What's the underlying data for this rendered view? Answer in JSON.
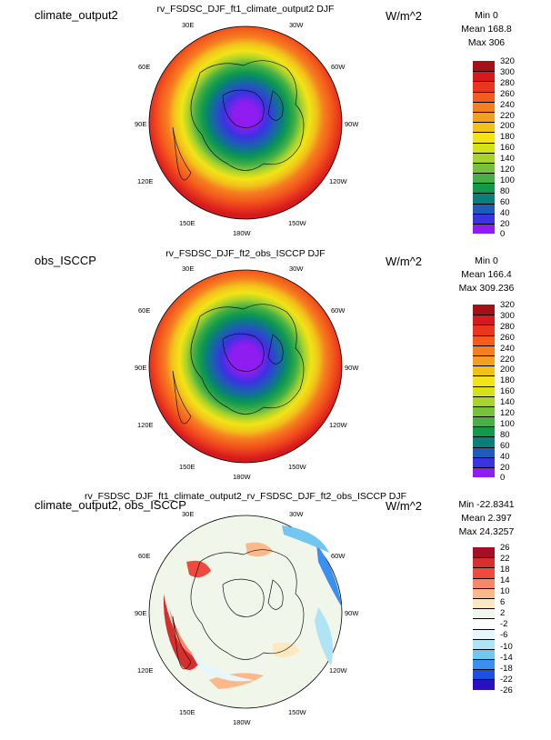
{
  "panels": [
    {
      "left_title": "climate_output2",
      "center_title": "rv_FSDSC_DJF_ft1_climate_output2  DJF",
      "units": "W/m^2",
      "stats": {
        "min": "Min 0",
        "mean": "Mean 168.8",
        "max": "Max 306"
      },
      "colorbar": {
        "labels": [
          "320",
          "300",
          "280",
          "260",
          "240",
          "220",
          "200",
          "180",
          "160",
          "140",
          "120",
          "100",
          "80",
          "60",
          "40",
          "20",
          "0"
        ],
        "colors": [
          "#a50f15",
          "#d7191c",
          "#e8371e",
          "#f45b1c",
          "#f57f20",
          "#f29f22",
          "#f2c21b",
          "#f2e416",
          "#d4e21a",
          "#a8d22c",
          "#78c13a",
          "#46b046",
          "#119a4e",
          "#0a7f7a",
          "#1f5bb8",
          "#3a33e0",
          "#8f1cf0"
        ]
      },
      "lon_labels": {
        "l30e": "30E",
        "l30w": "30W",
        "l60e": "60E",
        "l60w": "60W",
        "l90e": "90E",
        "l90w": "90W",
        "l120e": "120E",
        "l120w": "120W",
        "l150e": "150E",
        "l150w": "150W",
        "l180w": "180W"
      }
    },
    {
      "left_title": "obs_ISCCP",
      "center_title": "rv_FSDSC_DJF_ft2_obs_ISCCP  DJF",
      "units": "W/m^2",
      "stats": {
        "min": "Min 0",
        "mean": "Mean 166.4",
        "max": "Max 309.236"
      },
      "colorbar": {
        "labels": [
          "320",
          "300",
          "280",
          "260",
          "240",
          "220",
          "200",
          "180",
          "160",
          "140",
          "120",
          "100",
          "80",
          "60",
          "40",
          "20",
          "0"
        ],
        "colors": [
          "#a50f15",
          "#d7191c",
          "#e8371e",
          "#f45b1c",
          "#f57f20",
          "#f29f22",
          "#f2c21b",
          "#f2e416",
          "#d4e21a",
          "#a8d22c",
          "#78c13a",
          "#46b046",
          "#119a4e",
          "#0a7f7a",
          "#1f5bb8",
          "#3a33e0",
          "#8f1cf0"
        ]
      },
      "lon_labels": {
        "l30e": "30E",
        "l30w": "30W",
        "l60e": "60E",
        "l60w": "60W",
        "l90e": "90E",
        "l90w": "90W",
        "l120e": "120E",
        "l120w": "120W",
        "l150e": "150E",
        "l150w": "150W",
        "l180w": "180W"
      }
    },
    {
      "left_title": "climate_output2, obs_ISCCP",
      "center_title": "rv_FSDSC_DJF_ft1_climate_output2_rv_FSDSC_DJF_ft2_obs_ISCCP  DJF",
      "units": "W/m^2",
      "stats": {
        "min": "Min -22.8341",
        "mean": "Mean 2.397",
        "max": "Max 24.3257"
      },
      "colorbar": {
        "labels": [
          "26",
          "22",
          "18",
          "14",
          "10",
          "6",
          "2",
          "-2",
          "-6",
          "-10",
          "-14",
          "-18",
          "-22",
          "-26"
        ],
        "colors": [
          "#a50f26",
          "#d62f2f",
          "#f04a3e",
          "#f7866a",
          "#fbb98a",
          "#fde8bf",
          "#f0f7ea",
          "#ffffff",
          "#e6f6fa",
          "#b0e4f5",
          "#74c6f2",
          "#3a8ff0",
          "#1d4fe0",
          "#2a10c0"
        ]
      },
      "lon_labels": {
        "l30e": "30E",
        "l30w": "30W",
        "l60e": "60E",
        "l60w": "60W",
        "l90e": "90E",
        "l90w": "90W",
        "l120e": "120E",
        "l120w": "120W",
        "l150e": "150E",
        "l150w": "150W",
        "l180w": "180W"
      }
    }
  ],
  "chart_data": [
    {
      "type": "heatmap",
      "projection": "polar stereographic",
      "title": "rv_FSDSC_DJF_ft1_climate_output2  DJF",
      "units": "W/m^2",
      "min": 0,
      "mean": 168.8,
      "max": 306,
      "levels": [
        0,
        20,
        40,
        60,
        80,
        100,
        120,
        140,
        160,
        180,
        200,
        220,
        240,
        260,
        280,
        300,
        320
      ]
    },
    {
      "type": "heatmap",
      "projection": "polar stereographic",
      "title": "rv_FSDSC_DJF_ft2_obs_ISCCP  DJF",
      "units": "W/m^2",
      "min": 0,
      "mean": 166.4,
      "max": 309.236,
      "levels": [
        0,
        20,
        40,
        60,
        80,
        100,
        120,
        140,
        160,
        180,
        200,
        220,
        240,
        260,
        280,
        300,
        320
      ]
    },
    {
      "type": "heatmap",
      "projection": "polar stereographic",
      "title": "rv_FSDSC_DJF_ft1_climate_output2_rv_FSDSC_DJF_ft2_obs_ISCCP  DJF",
      "units": "W/m^2",
      "min": -22.8341,
      "mean": 2.397,
      "max": 24.3257,
      "levels": [
        -26,
        -22,
        -18,
        -14,
        -10,
        -6,
        -2,
        2,
        6,
        10,
        14,
        18,
        22,
        26
      ]
    }
  ]
}
